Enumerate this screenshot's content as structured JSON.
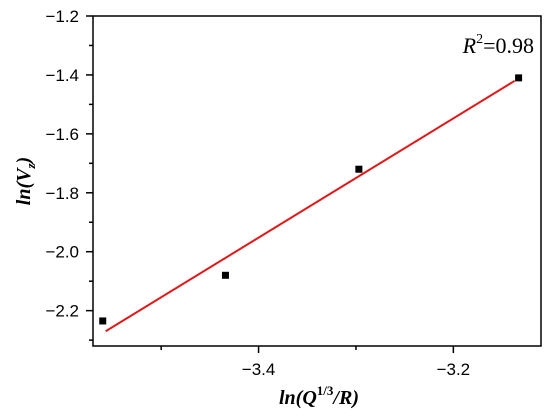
{
  "chart_data": {
    "type": "scatter",
    "title": "",
    "xlabel": "ln(Q^(1/3)/R)",
    "ylabel": "ln(V_z)",
    "xlim": [
      -3.57,
      -3.11
    ],
    "ylim": [
      -2.32,
      -1.2
    ],
    "x_ticks": [
      -3.4,
      -3.2
    ],
    "x_tick_labels": [
      "−3.4",
      "−3.2"
    ],
    "y_ticks": [
      -2.2,
      -2.0,
      -1.8,
      -1.6,
      -1.4,
      -1.2
    ],
    "y_tick_labels": [
      "−2.2",
      "−2.0",
      "−1.8",
      "−1.6",
      "−1.4",
      "−1.2"
    ],
    "grid": false,
    "series": [
      {
        "kind": "points",
        "x": [
          -3.56,
          -3.434,
          -3.297,
          -3.133
        ],
        "y": [
          -2.235,
          -2.08,
          -1.72,
          -1.41
        ],
        "color": "#000000"
      },
      {
        "kind": "fit-line",
        "x": [
          -3.557,
          -3.137
        ],
        "y": [
          -2.27,
          -1.42
        ],
        "color": "#e0191b"
      }
    ],
    "annotation": {
      "label": "R",
      "superscript": "2",
      "value": "=0.98"
    }
  }
}
